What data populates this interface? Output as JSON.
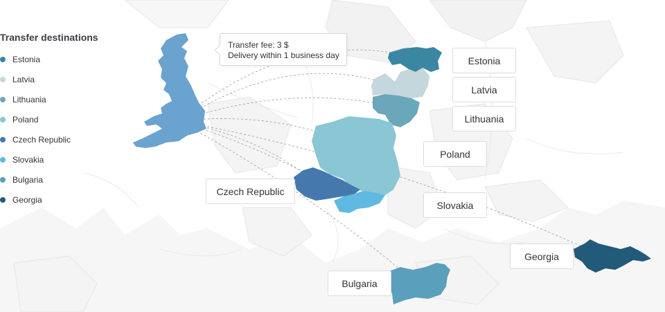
{
  "legend": {
    "title": "Transfer destinations",
    "items": [
      {
        "label": "Estonia",
        "color": "#3a86a3"
      },
      {
        "label": "Latvia",
        "color": "#c3d7dc"
      },
      {
        "label": "Lithuania",
        "color": "#6aa7ba"
      },
      {
        "label": "Poland",
        "color": "#8ac6d3"
      },
      {
        "label": "Czech Republic",
        "color": "#4579ad"
      },
      {
        "label": "Slovakia",
        "color": "#5fb9e2"
      },
      {
        "label": "Bulgaria",
        "color": "#5a9fbb"
      },
      {
        "label": "Georgia",
        "color": "#225a7a"
      }
    ]
  },
  "origin": {
    "name": "United Kingdom",
    "color": "#6aa3cf"
  },
  "tooltip": {
    "line1": "Transfer fee: 3 $",
    "line2": "Delivery within 1 business day"
  },
  "labels": {
    "estonia": "Estonia",
    "latvia": "Latvia",
    "lithuania": "Lithuania",
    "poland": "Poland",
    "czech": "Czech Republic",
    "slovakia": "Slovakia",
    "georgia": "Georgia",
    "bulgaria": "Bulgaria"
  },
  "base_map_color": "#f1f1f1"
}
